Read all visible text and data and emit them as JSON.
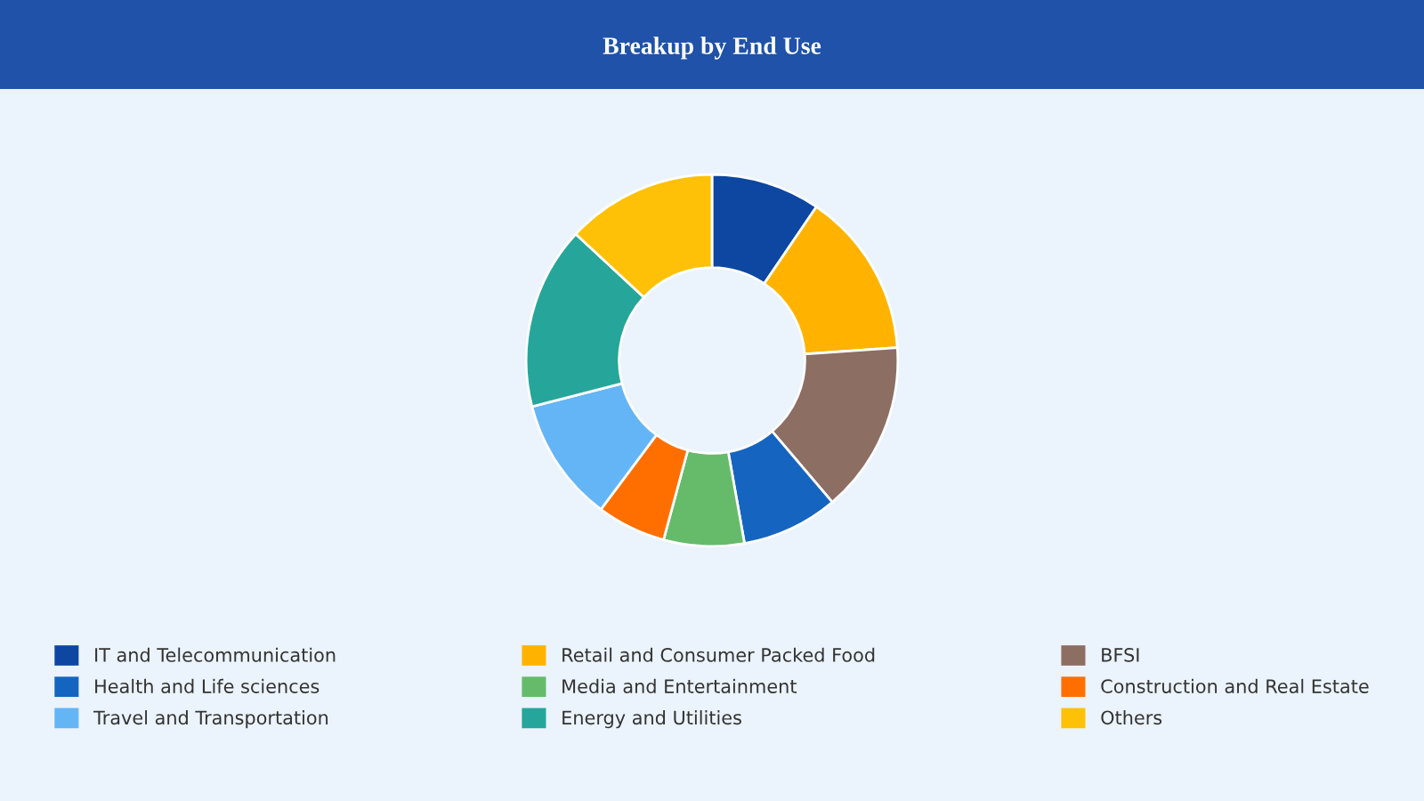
{
  "chart_data": {
    "type": "donut",
    "title": "Breakup by End Use",
    "categories": [
      "IT and Telecommunication",
      "Retail and Consumer Packed Food",
      "BFSI",
      "Health and Life sciences",
      "Media and Entertainment",
      "Construction and Real Estate",
      "Travel and Transportation",
      "Energy and Utilities",
      "Others"
    ],
    "values": [
      9.5,
      14.4,
      14.9,
      8.4,
      7.0,
      6.0,
      10.8,
      15.9,
      13.1
    ],
    "colors": [
      "#0d47a1",
      "#ffb300",
      "#8d6e63",
      "#1565c0",
      "#66bb6a",
      "#ff6f00",
      "#64b5f6",
      "#26a69a",
      "#ffc107"
    ],
    "legend": "bottom"
  }
}
